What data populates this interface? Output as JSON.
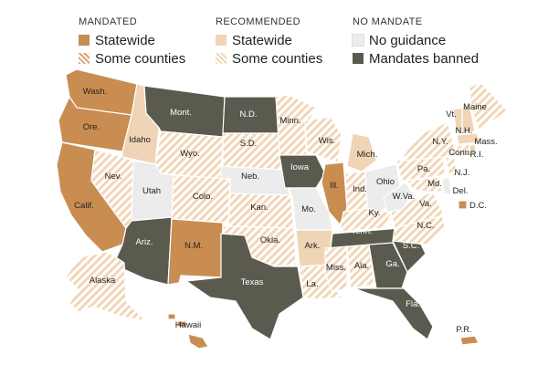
{
  "legend": {
    "groups": [
      {
        "heading": "MANDATED",
        "items": [
          {
            "label": "Statewide",
            "category": "mandated_statewide"
          },
          {
            "label": "Some counties",
            "category": "mandated_some"
          }
        ]
      },
      {
        "heading": "RECOMMENDED",
        "items": [
          {
            "label": "Statewide",
            "category": "recommended_statewide"
          },
          {
            "label": "Some counties",
            "category": "recommended_some"
          }
        ]
      },
      {
        "heading": "NO MANDATE",
        "items": [
          {
            "label": "No guidance",
            "category": "no_guidance"
          },
          {
            "label": "Mandates banned",
            "category": "banned"
          }
        ]
      }
    ]
  },
  "colors": {
    "mandated_statewide": "#c98d52",
    "mandated_some_stripe": "#d9a675",
    "recommended_statewide": "#efd4b6",
    "recommended_some_stripe": "#f2d6b8",
    "no_guidance": "#ececec",
    "banned": "#5a5a4e"
  },
  "states": [
    {
      "label": "Wash.",
      "category": "mandated_statewide"
    },
    {
      "label": "Ore.",
      "category": "mandated_statewide"
    },
    {
      "label": "Calif.",
      "category": "mandated_statewide"
    },
    {
      "label": "Idaho",
      "category": "recommended_statewide"
    },
    {
      "label": "Nev.",
      "category": "recommended_some"
    },
    {
      "label": "Mont.",
      "category": "banned"
    },
    {
      "label": "Wyo.",
      "category": "recommended_some"
    },
    {
      "label": "Utah",
      "category": "no_guidance"
    },
    {
      "label": "Ariz.",
      "category": "banned"
    },
    {
      "label": "Colo.",
      "category": "recommended_some"
    },
    {
      "label": "N.M.",
      "category": "mandated_statewide"
    },
    {
      "label": "N.D.",
      "category": "banned"
    },
    {
      "label": "S.D.",
      "category": "recommended_some"
    },
    {
      "label": "Neb.",
      "category": "no_guidance"
    },
    {
      "label": "Kan.",
      "category": "recommended_some"
    },
    {
      "label": "Okla.",
      "category": "recommended_some"
    },
    {
      "label": "Texas",
      "category": "banned"
    },
    {
      "label": "Minn.",
      "category": "recommended_some"
    },
    {
      "label": "Iowa",
      "category": "banned"
    },
    {
      "label": "Mo.",
      "category": "no_guidance"
    },
    {
      "label": "Ark.",
      "category": "recommended_statewide"
    },
    {
      "label": "La.",
      "category": "recommended_some"
    },
    {
      "label": "Wis.",
      "category": "recommended_some"
    },
    {
      "label": "Ill.",
      "category": "mandated_statewide"
    },
    {
      "label": "Mich.",
      "category": "recommended_statewide"
    },
    {
      "label": "Ind.",
      "category": "recommended_some"
    },
    {
      "label": "Ohio",
      "category": "no_guidance"
    },
    {
      "label": "Ky.",
      "category": "recommended_some"
    },
    {
      "label": "Tenn.",
      "category": "banned"
    },
    {
      "label": "Miss.",
      "category": "recommended_some"
    },
    {
      "label": "Ala.",
      "category": "recommended_some"
    },
    {
      "label": "Ga.",
      "category": "banned"
    },
    {
      "label": "Fla.",
      "category": "banned"
    },
    {
      "label": "S.C.",
      "category": "banned"
    },
    {
      "label": "N.C.",
      "category": "recommended_some"
    },
    {
      "label": "Va.",
      "category": "recommended_some"
    },
    {
      "label": "W.Va.",
      "category": "no_guidance"
    },
    {
      "label": "Md.",
      "category": "recommended_some"
    },
    {
      "label": "Del.",
      "category": "no_guidance"
    },
    {
      "label": "Pa.",
      "category": "recommended_some"
    },
    {
      "label": "N.J.",
      "category": "recommended_some"
    },
    {
      "label": "N.Y.",
      "category": "recommended_some"
    },
    {
      "label": "Conn.",
      "category": "recommended_some"
    },
    {
      "label": "R.I.",
      "category": "recommended_statewide"
    },
    {
      "label": "Mass.",
      "category": "recommended_statewide"
    },
    {
      "label": "Vt.",
      "category": "recommended_statewide"
    },
    {
      "label": "N.H.",
      "category": "recommended_statewide"
    },
    {
      "label": "Maine",
      "category": "recommended_some"
    },
    {
      "label": "D.C.",
      "category": "mandated_statewide"
    },
    {
      "label": "Alaska",
      "category": "recommended_some"
    },
    {
      "label": "Hawaii",
      "category": "mandated_statewide"
    },
    {
      "label": "P.R.",
      "category": "mandated_statewide"
    }
  ]
}
